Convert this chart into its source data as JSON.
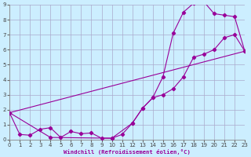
{
  "xlabel": "Windchill (Refroidissement éolien,°C)",
  "bg_color": "#cceeff",
  "grid_color": "#aaaacc",
  "line_color": "#990099",
  "xlim": [
    0,
    23
  ],
  "ylim": [
    0,
    9
  ],
  "line1_x": [
    0,
    1,
    2,
    3,
    4,
    5,
    6,
    7,
    8,
    9,
    10,
    11,
    12,
    13,
    14,
    15,
    16,
    17,
    18,
    19,
    20,
    21,
    22,
    23
  ],
  "line1_y": [
    1.8,
    0.35,
    0.3,
    0.7,
    0.8,
    0.15,
    0.55,
    0.4,
    0.45,
    0.1,
    0.1,
    0.35,
    1.1,
    2.1,
    2.8,
    3.0,
    3.4,
    4.2,
    5.5,
    5.7,
    6.0,
    6.8,
    7.0,
    5.9
  ],
  "line2_x": [
    0,
    4,
    10,
    12,
    13,
    14,
    15,
    16,
    17,
    18,
    19,
    20,
    21,
    22,
    23
  ],
  "line2_y": [
    1.8,
    0.15,
    0.1,
    1.1,
    2.1,
    2.8,
    4.2,
    7.1,
    8.5,
    9.1,
    9.2,
    8.4,
    8.3,
    8.2,
    5.9
  ],
  "line3_x": [
    0,
    23
  ],
  "line3_y": [
    1.8,
    5.9
  ]
}
